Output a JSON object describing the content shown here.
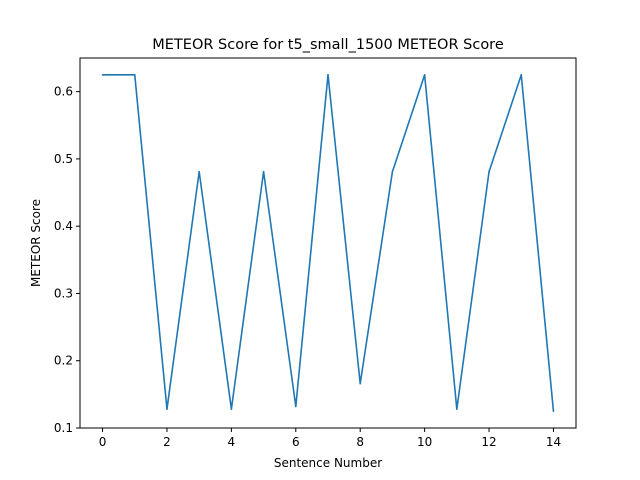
{
  "chart_data": {
    "type": "line",
    "title": "METEOR Score for t5_small_1500 METEOR Score",
    "xlabel": "Sentence Number",
    "ylabel": "METEOR Score",
    "xlim": [
      -0.7,
      14.7
    ],
    "ylim": [
      0.1,
      0.65
    ],
    "x_ticks": [
      0,
      2,
      4,
      6,
      8,
      10,
      12,
      14
    ],
    "x_tick_labels": [
      "0",
      "2",
      "4",
      "6",
      "8",
      "10",
      "12",
      "14"
    ],
    "y_ticks": [
      0.1,
      0.2,
      0.3,
      0.4,
      0.5,
      0.6
    ],
    "y_tick_labels": [
      "0.1",
      "0.2",
      "0.3",
      "0.4",
      "0.5",
      "0.6"
    ],
    "grid": false,
    "legend": "none",
    "series": [
      {
        "color": "#1f77b4",
        "x": [
          0,
          1,
          2,
          3,
          4,
          5,
          6,
          7,
          8,
          9,
          10,
          11,
          12,
          13,
          14
        ],
        "y": [
          0.625,
          0.625,
          0.128,
          0.481,
          0.128,
          0.481,
          0.132,
          0.625,
          0.166,
          0.481,
          0.625,
          0.128,
          0.481,
          0.625,
          0.125
        ]
      }
    ]
  }
}
